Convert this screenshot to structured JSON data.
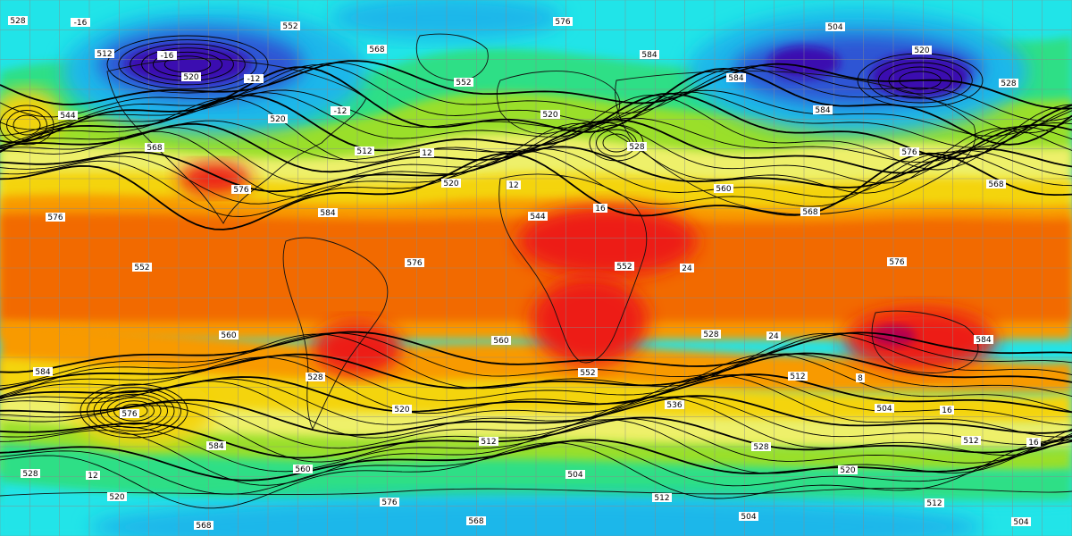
{
  "map": {
    "type": "global-equirectangular-field",
    "grid_visible": true,
    "grid_color": "#8a8a8a",
    "coastlines_color": "#111111",
    "palette": [
      "#3b0fb0",
      "#2f55d4",
      "#1fb7ea",
      "#21e4e8",
      "#2edf86",
      "#9adf2c",
      "#eef06a",
      "#f4d40a",
      "#f89a06",
      "#f26a00",
      "#ed1c13",
      "#b4004f"
    ],
    "contour_labels": [
      "528",
      "512",
      "520",
      "520",
      "512",
      "520",
      "544",
      "552",
      "528",
      "512",
      "504",
      "512",
      "528",
      "520",
      "568",
      "552",
      "568",
      "552",
      "520",
      "528",
      "560",
      "568",
      "576",
      "584",
      "584",
      "576",
      "584",
      "560",
      "576",
      "568",
      "576",
      "584",
      "584",
      "584",
      "576",
      "568",
      "576",
      "552",
      "560",
      "528",
      "520",
      "512",
      "504",
      "512",
      "504",
      "504",
      "520",
      "528",
      "544",
      "568",
      "576",
      "584",
      "576",
      "560",
      "552",
      "536",
      "528",
      "520",
      "512",
      "504",
      "-16",
      "-16",
      "-12",
      "-12",
      "12",
      "12",
      "16",
      "24",
      "24",
      "8",
      "16",
      "16",
      "12"
    ]
  }
}
